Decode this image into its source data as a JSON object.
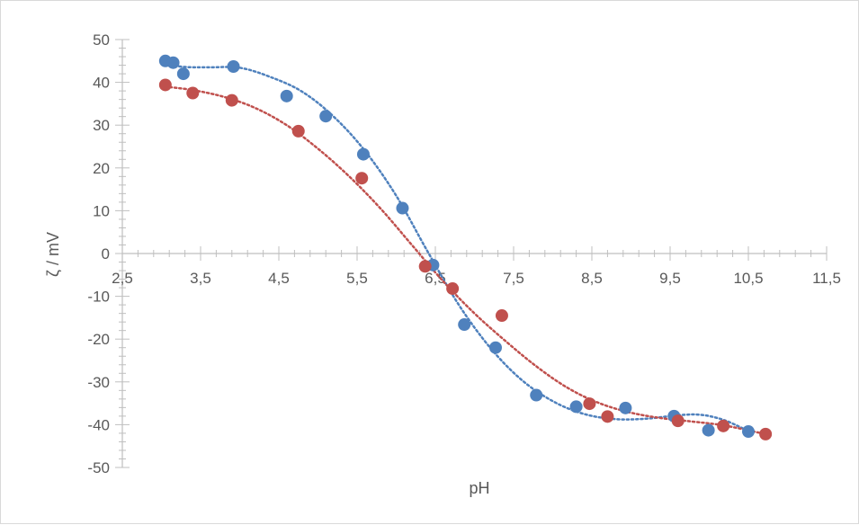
{
  "chart_data": {
    "type": "scatter",
    "title": "",
    "xlabel": "pH",
    "ylabel": "ζ / mV",
    "xlim": [
      2.5,
      11.5
    ],
    "ylim": [
      -50,
      50
    ],
    "x_ticks": [
      2.5,
      3.5,
      4.5,
      5.5,
      6.5,
      7.5,
      8.5,
      9.5,
      10.5,
      11.5
    ],
    "x_tick_labels": [
      "2,5",
      "3,5",
      "4,5",
      "5,5",
      "6,5",
      "7,5",
      "8,5",
      "9,5",
      "10,5",
      "11,5"
    ],
    "y_ticks": [
      50,
      40,
      30,
      20,
      10,
      0,
      -10,
      -20,
      -30,
      -40,
      -50
    ],
    "y_tick_labels": [
      "50",
      "40",
      "30",
      "20",
      "10",
      "0",
      "-10",
      "-20",
      "-30",
      "-40",
      "-50"
    ],
    "grid": false,
    "legend": "none",
    "trendline": "dotted polynomial",
    "series": [
      {
        "color": "#4f81bd",
        "x": [
          3.05,
          3.15,
          3.28,
          3.92,
          4.6,
          5.1,
          5.58,
          6.08,
          6.47,
          6.87,
          7.27,
          7.79,
          8.3,
          8.93,
          9.55,
          9.99,
          10.5
        ],
        "y": [
          45.0,
          44.6,
          42.0,
          43.7,
          36.8,
          32.1,
          23.2,
          10.6,
          -2.7,
          -16.6,
          -22.0,
          -33.1,
          -35.8,
          -36.1,
          -38.0,
          -41.3,
          -41.6
        ],
        "trend": [
          [
            3.05,
            44.2
          ],
          [
            3.3,
            43.6
          ],
          [
            3.6,
            43.5
          ],
          [
            4.0,
            43.4
          ],
          [
            4.4,
            41.2
          ],
          [
            4.8,
            37.8
          ],
          [
            5.2,
            32.0
          ],
          [
            5.6,
            24.0
          ],
          [
            6.0,
            13.5
          ],
          [
            6.4,
            0.5
          ],
          [
            6.8,
            -12.0
          ],
          [
            7.2,
            -22.0
          ],
          [
            7.6,
            -29.5
          ],
          [
            8.0,
            -34.5
          ],
          [
            8.4,
            -37.5
          ],
          [
            8.8,
            -38.7
          ],
          [
            9.2,
            -38.6
          ],
          [
            9.6,
            -37.8
          ],
          [
            9.9,
            -37.7
          ],
          [
            10.2,
            -39.0
          ],
          [
            10.5,
            -41.5
          ]
        ]
      },
      {
        "color": "#c0504d",
        "x": [
          3.05,
          3.4,
          3.9,
          4.75,
          5.56,
          6.37,
          6.72,
          7.35,
          8.47,
          8.7,
          9.6,
          10.18,
          10.72
        ],
        "y": [
          39.4,
          37.5,
          35.8,
          28.6,
          17.6,
          -3.0,
          -8.2,
          -14.5,
          -35.1,
          -38.1,
          -39.1,
          -40.3,
          -42.2
        ],
        "trend": [
          [
            3.05,
            39.0
          ],
          [
            3.4,
            38.2
          ],
          [
            3.8,
            36.6
          ],
          [
            4.2,
            34.0
          ],
          [
            4.6,
            30.0
          ],
          [
            5.0,
            24.5
          ],
          [
            5.4,
            18.0
          ],
          [
            5.8,
            10.5
          ],
          [
            6.2,
            2.0
          ],
          [
            6.6,
            -6.5
          ],
          [
            7.0,
            -14.0
          ],
          [
            7.4,
            -20.5
          ],
          [
            7.8,
            -26.5
          ],
          [
            8.2,
            -31.5
          ],
          [
            8.6,
            -35.0
          ],
          [
            9.0,
            -37.2
          ],
          [
            9.4,
            -38.5
          ],
          [
            9.8,
            -39.3
          ],
          [
            10.2,
            -40.2
          ],
          [
            10.72,
            -42.2
          ]
        ]
      }
    ]
  }
}
